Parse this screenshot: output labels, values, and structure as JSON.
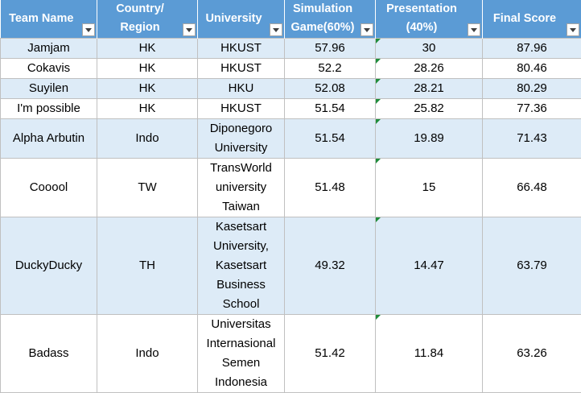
{
  "headers": [
    {
      "line1": "Team Name",
      "line2": ""
    },
    {
      "line1": "Country/",
      "line2": "Region"
    },
    {
      "line1": "University",
      "line2": ""
    },
    {
      "line1": "Simulation",
      "line2": "Game(60%)"
    },
    {
      "line1": "Presentation",
      "line2": "(40%)"
    },
    {
      "line1": "Final Score",
      "line2": ""
    }
  ],
  "rows": [
    {
      "team": "Jamjam",
      "region": "HK",
      "university": [
        "HKUST"
      ],
      "simulation": "57.96",
      "presentation": "30",
      "final": "87.96"
    },
    {
      "team": "Cokavis",
      "region": "HK",
      "university": [
        "HKUST"
      ],
      "simulation": "52.2",
      "presentation": "28.26",
      "final": "80.46"
    },
    {
      "team": "Suyilen",
      "region": "HK",
      "university": [
        "HKU"
      ],
      "simulation": "52.08",
      "presentation": "28.21",
      "final": "80.29"
    },
    {
      "team": "I'm possible",
      "region": "HK",
      "university": [
        "HKUST"
      ],
      "simulation": "51.54",
      "presentation": "25.82",
      "final": "77.36"
    },
    {
      "team": "Alpha Arbutin",
      "region": "Indo",
      "university": [
        "Diponegoro",
        "University"
      ],
      "simulation": "51.54",
      "presentation": "19.89",
      "final": "71.43"
    },
    {
      "team": "Cooool",
      "region": "TW",
      "university": [
        "TransWorld",
        "university",
        "Taiwan"
      ],
      "simulation": "51.48",
      "presentation": "15",
      "final": "66.48"
    },
    {
      "team": "DuckyDucky",
      "region": "TH",
      "university": [
        "Kasetsart",
        "University,",
        "Kasetsart",
        "Business",
        "School"
      ],
      "simulation": "49.32",
      "presentation": "14.47",
      "final": "63.79"
    },
    {
      "team": "Badass",
      "region": "Indo",
      "university": [
        "Universitas",
        "Internasional",
        "Semen",
        "Indonesia"
      ],
      "simulation": "51.42",
      "presentation": "11.84",
      "final": "63.26"
    }
  ]
}
